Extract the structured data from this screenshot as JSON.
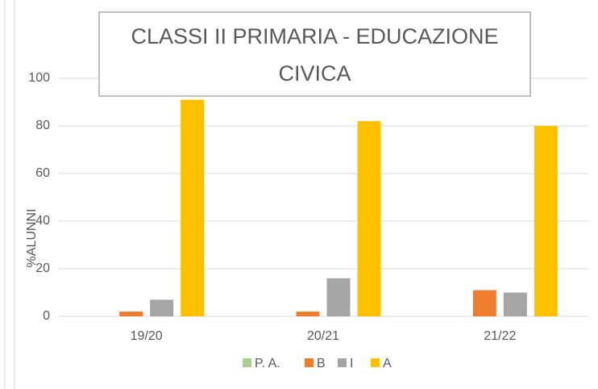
{
  "chart_data": {
    "type": "bar",
    "title": "CLASSI II PRIMARIA - EDUCAZIONE CIVICA",
    "y_label": "%ALUNNI",
    "categories": [
      "19/20",
      "20/21",
      "21/22"
    ],
    "series": [
      {
        "name": "P. A.",
        "color": "#a9d18e",
        "values": [
          0,
          0,
          0
        ]
      },
      {
        "name": "B",
        "color": "#ed7d31",
        "values": [
          2,
          2,
          11
        ]
      },
      {
        "name": "I",
        "color": "#a5a5a5",
        "values": [
          7,
          16,
          10
        ]
      },
      {
        "name": "A",
        "color": "#ffc000",
        "values": [
          91,
          82,
          80
        ]
      }
    ],
    "ylim": [
      0,
      100
    ],
    "yticks": [
      0,
      20,
      40,
      60,
      80,
      100
    ],
    "grid": true,
    "legend": "bottom"
  }
}
